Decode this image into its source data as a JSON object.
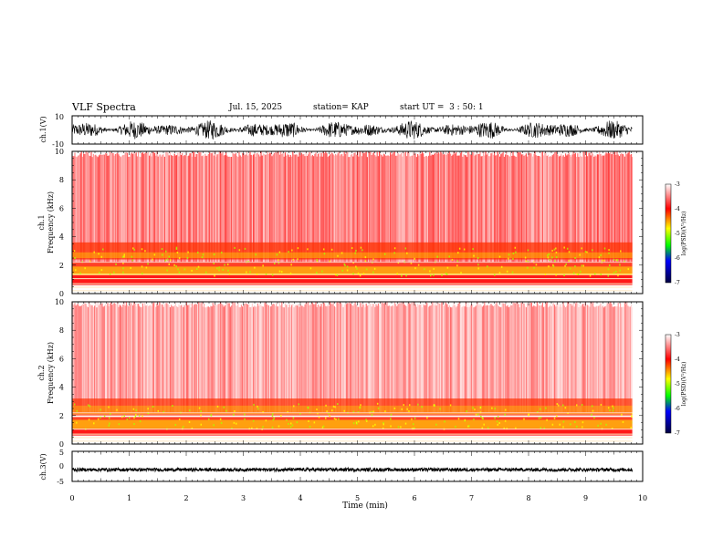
{
  "header": {
    "title": "VLF Spectra",
    "date": "Jul. 15, 2025",
    "station": "station= KAP",
    "start_ut": "start UT =  3 : 50: 1"
  },
  "chart_data": [
    {
      "type": "line",
      "name": "ch1-waveform",
      "ylabel": "ch.1(V)",
      "ylim": [
        -10,
        10
      ],
      "ytick_labels": [
        "10",
        "-10"
      ],
      "xlim": [
        0,
        10
      ],
      "data_extent_min": 9.82,
      "description_values": {
        "typical_min": -7,
        "typical_max": 7
      }
    },
    {
      "type": "heatmap",
      "name": "ch1-spectrogram",
      "ylabel_line1": "ch.1",
      "ylabel_line2": "Frequency (kHz)",
      "ylim": [
        0,
        10
      ],
      "ytick_labels": [
        "0",
        "2",
        "4",
        "6",
        "8",
        "10"
      ],
      "xlim": [
        0,
        10
      ],
      "data_extent_min": 9.82,
      "colorbar": {
        "label": "log(PSD)(V²/Hz)",
        "range": [
          -7,
          -3
        ],
        "tick_labels": [
          "-3",
          "-4",
          "-5",
          "-6",
          "-7"
        ]
      }
    },
    {
      "type": "heatmap",
      "name": "ch2-spectrogram",
      "ylabel_line1": "ch.2",
      "ylabel_line2": "Frequency (kHz)",
      "ylim": [
        0,
        10
      ],
      "ytick_labels": [
        "0",
        "2",
        "4",
        "6",
        "8",
        "10"
      ],
      "xlim": [
        0,
        10
      ],
      "data_extent_min": 9.82,
      "colorbar": {
        "label": "log(PSD)(V²/Hz)",
        "range": [
          -7,
          -3
        ],
        "tick_labels": [
          "-3",
          "-4",
          "-5",
          "-6",
          "-7"
        ]
      }
    },
    {
      "type": "line",
      "name": "ch3-waveform",
      "ylabel": "ch.3(V)",
      "ylim": [
        -5,
        5
      ],
      "ytick_labels": [
        "5",
        "0",
        "-5"
      ],
      "xlim": [
        0,
        10
      ],
      "data_extent_min": 9.82,
      "xlabel": "Time (min)",
      "xtick_labels": [
        "0",
        "1",
        "2",
        "3",
        "4",
        "5",
        "6",
        "7",
        "8",
        "9",
        "10"
      ]
    }
  ]
}
